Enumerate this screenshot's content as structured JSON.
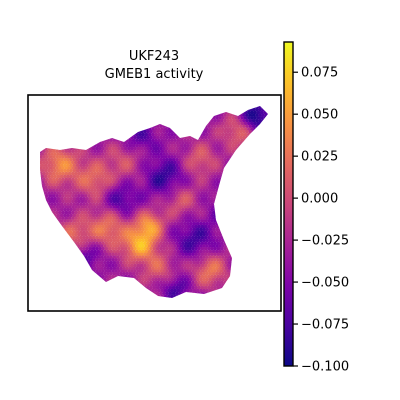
{
  "chart_data": {
    "type": "heatmap",
    "title_line1": "UKF243",
    "title_line2": "GMEB1 activity",
    "xlabel": "",
    "ylabel": "",
    "colorbar": {
      "colormap": "plasma",
      "vmin": -0.1,
      "vmax": 0.093,
      "ticks": [
        {
          "value": 0.075,
          "label": "0.075"
        },
        {
          "value": 0.05,
          "label": "0.050"
        },
        {
          "value": 0.025,
          "label": "0.025"
        },
        {
          "value": 0.0,
          "label": "0.000"
        },
        {
          "value": -0.025,
          "label": "−0.025"
        },
        {
          "value": -0.05,
          "label": "−0.050"
        },
        {
          "value": -0.075,
          "label": "−0.075"
        },
        {
          "value": -0.1,
          "label": "−0.100"
        }
      ]
    },
    "axes_ticks_shown": false,
    "grid": false
  }
}
